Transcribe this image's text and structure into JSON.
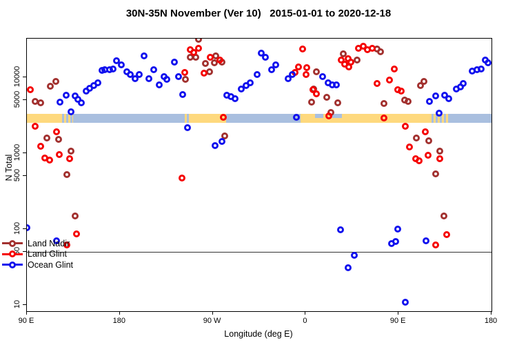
{
  "title": "30N-35N November (Ver 10)   2015-01-01 to 2020-12-18",
  "legend": {
    "items": [
      {
        "label": "Land Nadir",
        "color": "#A2312F"
      },
      {
        "label": "Land Glint",
        "color": "#F50000"
      },
      {
        "label": "Ocean Glint",
        "color": "#1111EE"
      }
    ]
  },
  "chart_data": {
    "type": "scatter",
    "title": "30N-35N November (Ver 10)   2015-01-01 to 2020-12-18",
    "xlabel": "Longitude (deg E)",
    "ylabel": "N Total",
    "x_axis": {
      "span_deg": 450,
      "x_units": "degrees along axis from left edge; axis wraps eastward: 0=90E, 90=180, 180=90W, 270=0, 360=90E, 450=180",
      "ticks": [
        {
          "pos": 0,
          "label": "90 E"
        },
        {
          "pos": 90,
          "label": "180"
        },
        {
          "pos": 180,
          "label": "90 W"
        },
        {
          "pos": 270,
          "label": "0"
        },
        {
          "pos": 360,
          "label": "90 E"
        },
        {
          "pos": 450,
          "label": "180"
        }
      ]
    },
    "y_axis": {
      "scale": "log",
      "domain": [
        8.3,
        32000
      ],
      "ticks": [
        10,
        50,
        100,
        500,
        1000,
        5000,
        10000
      ]
    },
    "reference_line_y": 50,
    "land_ocean_band": {
      "approx_n_center": 3000,
      "colors": {
        "land": "#FED97E",
        "ocean": "#A9BFDF"
      },
      "segments": [
        {
          "from": 0,
          "to": 32,
          "type": "land"
        },
        {
          "from": 32,
          "to": 45,
          "type": "mixed"
        },
        {
          "from": 45,
          "to": 153,
          "type": "ocean"
        },
        {
          "from": 153,
          "to": 158,
          "type": "mixed"
        },
        {
          "from": 158,
          "to": 193,
          "type": "land"
        },
        {
          "from": 193,
          "to": 265,
          "type": "ocean"
        },
        {
          "from": 265,
          "to": 390,
          "type": "land"
        },
        {
          "from": 279,
          "to": 287,
          "type": "ocean_patch_top"
        },
        {
          "from": 296,
          "to": 305,
          "type": "ocean_patch_top"
        },
        {
          "from": 390,
          "to": 410,
          "type": "mixed"
        },
        {
          "from": 410,
          "to": 450,
          "type": "ocean"
        }
      ]
    },
    "series": [
      {
        "name": "Land Nadir",
        "color": "#A2312F",
        "points": [
          [
            8,
            4800
          ],
          [
            13.3,
            4600
          ],
          [
            22.7,
            7600
          ],
          [
            28,
            8700
          ],
          [
            166,
            31600
          ],
          [
            158,
            18100
          ],
          [
            163.3,
            18100
          ],
          [
            172.7,
            15000
          ],
          [
            182.7,
            19100
          ],
          [
            181.3,
            15500
          ],
          [
            188.7,
            15800
          ],
          [
            176.7,
            11800
          ],
          [
            153.3,
            9400
          ],
          [
            191.3,
            1690
          ],
          [
            19.1,
            1570
          ],
          [
            30.7,
            1520
          ],
          [
            42.7,
            1060
          ],
          [
            38.7,
            520
          ],
          [
            46.7,
            150
          ],
          [
            276,
            4700
          ],
          [
            290.7,
            5450
          ],
          [
            301.3,
            4600
          ],
          [
            294.7,
            3430
          ],
          [
            278,
            7030
          ],
          [
            280.7,
            11800
          ],
          [
            306.7,
            20300
          ],
          [
            320,
            16900
          ],
          [
            339.3,
            23600
          ],
          [
            342.7,
            21600
          ],
          [
            346,
            4500
          ],
          [
            366,
            4950
          ],
          [
            369.3,
            4750
          ],
          [
            381.3,
            7780
          ],
          [
            384.7,
            8800
          ],
          [
            377.3,
            1590
          ],
          [
            389.3,
            1460
          ],
          [
            400,
            1060
          ],
          [
            396,
            530
          ],
          [
            404,
            150
          ]
        ]
      },
      {
        "name": "Land Glint",
        "color": "#F50000",
        "points": [
          [
            3.3,
            6860
          ],
          [
            8,
            2230
          ],
          [
            28.7,
            1920
          ],
          [
            13.3,
            1230
          ],
          [
            17.3,
            867
          ],
          [
            22,
            813
          ],
          [
            31.3,
            955
          ],
          [
            41.3,
            846
          ],
          [
            48,
            86
          ],
          [
            38.7,
            62
          ],
          [
            152.7,
            11600
          ],
          [
            158,
            22700
          ],
          [
            161.3,
            21300
          ],
          [
            166,
            24100
          ],
          [
            177.3,
            18300
          ],
          [
            186.7,
            16900
          ],
          [
            171.3,
            11350
          ],
          [
            150,
            471
          ],
          [
            190,
            2970
          ],
          [
            266.7,
            23300
          ],
          [
            262.7,
            13700
          ],
          [
            260,
            11600
          ],
          [
            271.3,
            13200
          ],
          [
            270.7,
            10900
          ],
          [
            277.3,
            6870
          ],
          [
            280.7,
            6060
          ],
          [
            292.7,
            3100
          ],
          [
            304.7,
            16600
          ],
          [
            311.3,
            17300
          ],
          [
            308,
            14900
          ],
          [
            314,
            15600
          ],
          [
            312,
            13700
          ],
          [
            321.3,
            24100
          ],
          [
            326,
            25200
          ],
          [
            330,
            23000
          ],
          [
            334.7,
            24100
          ],
          [
            339.3,
            8250
          ],
          [
            356,
            12900
          ],
          [
            351.3,
            9200
          ],
          [
            359.3,
            6870
          ],
          [
            362.7,
            6600
          ],
          [
            346,
            2910
          ],
          [
            366.7,
            2230
          ],
          [
            386,
            1920
          ],
          [
            370.7,
            1210
          ],
          [
            376.7,
            848
          ],
          [
            380,
            797
          ],
          [
            388.7,
            940
          ],
          [
            400,
            846
          ],
          [
            396,
            62
          ],
          [
            406.7,
            85
          ]
        ]
      },
      {
        "name": "Ocean Glint",
        "color": "#1111EE",
        "points": [
          [
            0,
            104
          ],
          [
            31.8,
            4700
          ],
          [
            38,
            5800
          ],
          [
            42.7,
            3510
          ],
          [
            46.5,
            5700
          ],
          [
            49.5,
            5070
          ],
          [
            52.9,
            4570
          ],
          [
            57.3,
            6600
          ],
          [
            60.7,
            7150
          ],
          [
            64.7,
            7780
          ],
          [
            68.7,
            8400
          ],
          [
            72.7,
            12300
          ],
          [
            75.3,
            12600
          ],
          [
            80,
            12600
          ],
          [
            83.3,
            12900
          ],
          [
            86.7,
            16300
          ],
          [
            91.3,
            14600
          ],
          [
            96.7,
            11850
          ],
          [
            100,
            10700
          ],
          [
            104.7,
            9600
          ],
          [
            108.7,
            10700
          ],
          [
            113.3,
            19100
          ],
          [
            122.7,
            12600
          ],
          [
            118,
            9600
          ],
          [
            128,
            7950
          ],
          [
            132.7,
            10200
          ],
          [
            135.3,
            9400
          ],
          [
            142.7,
            15800
          ],
          [
            146.7,
            10200
          ],
          [
            150.7,
            5950
          ],
          [
            155.3,
            2160
          ],
          [
            193.3,
            5800
          ],
          [
            197.3,
            5560
          ],
          [
            201.3,
            5220
          ],
          [
            207.3,
            7030
          ],
          [
            212,
            7780
          ],
          [
            216,
            8400
          ],
          [
            222.7,
            10700
          ],
          [
            226.7,
            20800
          ],
          [
            230.7,
            18100
          ],
          [
            241.3,
            14600
          ],
          [
            236.7,
            12600
          ],
          [
            257.3,
            10700
          ],
          [
            253.3,
            9600
          ],
          [
            286.7,
            10200
          ],
          [
            292,
            8400
          ],
          [
            296,
            7950
          ],
          [
            300,
            7950
          ],
          [
            260.7,
            2970
          ],
          [
            182,
            1260
          ],
          [
            188.7,
            1430
          ],
          [
            28.7,
            70
          ],
          [
            304,
            98
          ],
          [
            359.3,
            100
          ],
          [
            353.3,
            64
          ],
          [
            357.3,
            68
          ],
          [
            386.7,
            70
          ],
          [
            317.3,
            45
          ],
          [
            311.3,
            31
          ],
          [
            366.7,
            11
          ],
          [
            390,
            4750
          ],
          [
            396,
            5650
          ],
          [
            404.7,
            5800
          ],
          [
            408.7,
            5220
          ],
          [
            399.3,
            3370
          ],
          [
            416,
            7030
          ],
          [
            420,
            7460
          ],
          [
            422.7,
            8250
          ],
          [
            431.3,
            12100
          ],
          [
            436,
            12600
          ],
          [
            440,
            12900
          ],
          [
            444,
            16600
          ],
          [
            446.7,
            15500
          ]
        ]
      }
    ]
  }
}
